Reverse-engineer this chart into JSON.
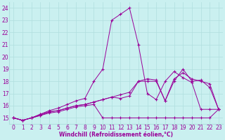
{
  "xlabel": "Windchill (Refroidissement éolien,°C)",
  "background_color": "#caf0f0",
  "grid_color": "#b0dede",
  "line_color": "#990099",
  "xlim": [
    -0.5,
    23.5
  ],
  "ylim": [
    14.5,
    24.5
  ],
  "xticks": [
    0,
    1,
    2,
    3,
    4,
    5,
    6,
    7,
    8,
    9,
    10,
    11,
    12,
    13,
    14,
    15,
    16,
    17,
    18,
    19,
    20,
    21,
    22,
    23
  ],
  "yticks": [
    15,
    16,
    17,
    18,
    19,
    20,
    21,
    22,
    23,
    24
  ],
  "lines": [
    [
      15.0,
      14.8,
      15.0,
      15.2,
      15.5,
      15.6,
      15.8,
      16.0,
      16.1,
      16.3,
      16.5,
      16.7,
      16.9,
      17.1,
      18.0,
      18.2,
      18.1,
      16.4,
      18.2,
      18.7,
      18.2,
      18.0,
      17.8,
      15.7
    ],
    [
      15.0,
      14.8,
      15.0,
      15.3,
      15.5,
      15.6,
      15.8,
      16.0,
      16.1,
      16.3,
      16.5,
      16.7,
      16.6,
      16.8,
      18.0,
      18.0,
      18.0,
      16.4,
      18.0,
      19.0,
      18.0,
      18.1,
      17.5,
      15.7
    ],
    [
      15.0,
      14.8,
      15.0,
      15.2,
      15.4,
      15.5,
      15.7,
      15.9,
      16.0,
      16.1,
      15.0,
      15.0,
      15.0,
      15.0,
      15.0,
      15.0,
      15.0,
      15.0,
      15.0,
      15.0,
      15.0,
      15.0,
      15.0,
      15.7
    ],
    [
      15.0,
      14.8,
      15.0,
      15.3,
      15.6,
      15.8,
      16.1,
      16.4,
      16.6,
      18.0,
      19.0,
      23.0,
      23.5,
      24.0,
      21.0,
      17.0,
      16.5,
      18.0,
      18.8,
      18.3,
      17.9,
      15.7,
      15.7,
      15.7
    ]
  ],
  "tick_fontsize": 5.5,
  "xlabel_fontsize": 5.5
}
